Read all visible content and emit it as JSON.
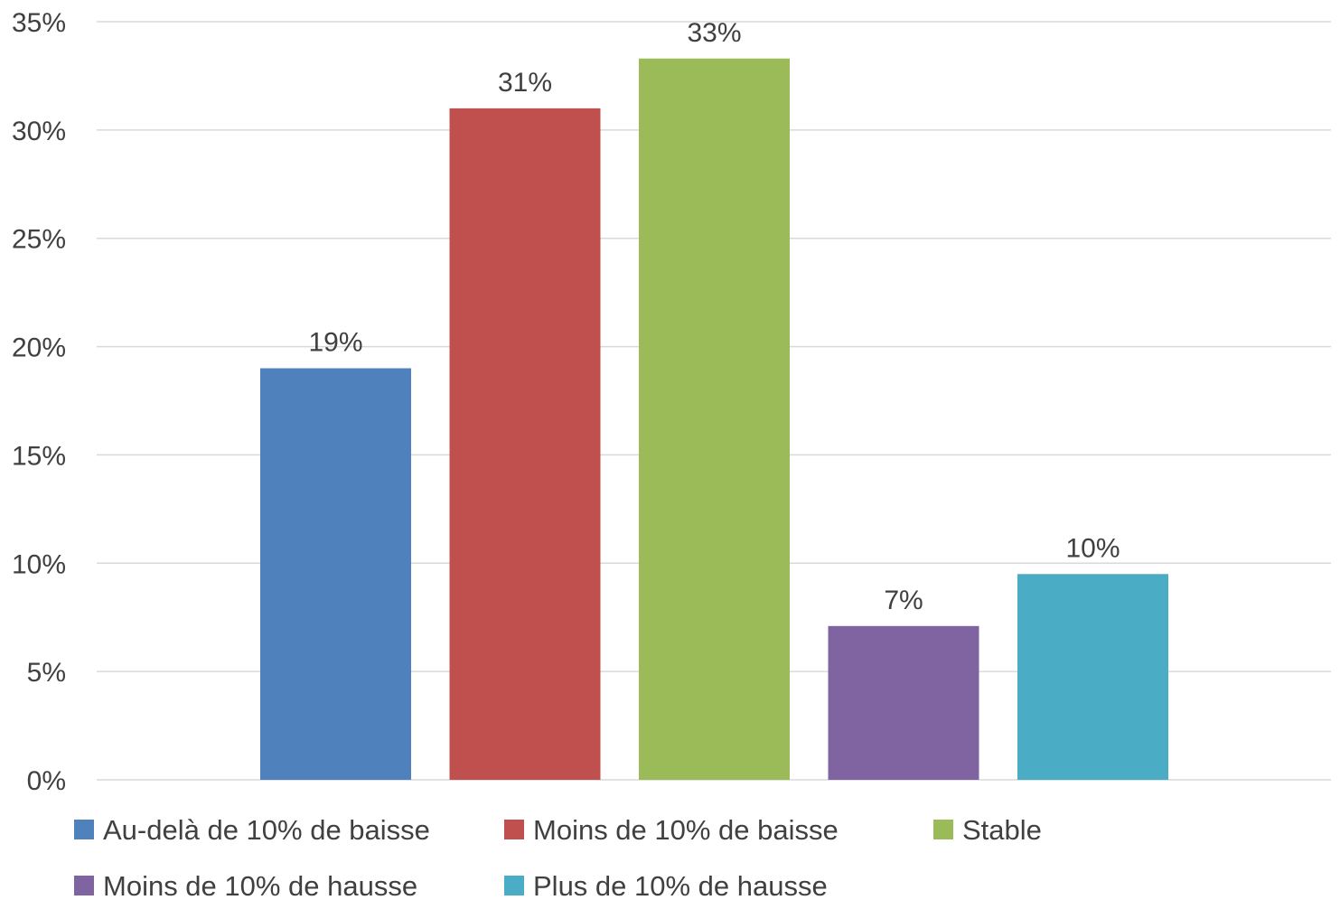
{
  "chart_data": {
    "type": "bar",
    "series": [
      {
        "name": "Au-delà de 10% de baisse",
        "value": 19,
        "label": "19%",
        "color": "#4f81bd"
      },
      {
        "name": "Moins de 10% de baisse",
        "value": 31,
        "label": "31%",
        "color": "#c0504d"
      },
      {
        "name": "Stable",
        "value": 33.3,
        "label": "33%",
        "color": "#9bbb59"
      },
      {
        "name": "Moins de 10% de hausse",
        "value": 7.1,
        "label": "7%",
        "color": "#8064a2"
      },
      {
        "name": "Plus de 10% de hausse",
        "value": 9.5,
        "label": "10%",
        "color": "#4bacc6"
      }
    ],
    "y_ticks": [
      "0%",
      "5%",
      "10%",
      "15%",
      "20%",
      "25%",
      "30%",
      "35%"
    ],
    "ylim": [
      0,
      35
    ],
    "grid": true,
    "legend_position": "bottom",
    "title": "",
    "xlabel": "",
    "ylabel": ""
  }
}
